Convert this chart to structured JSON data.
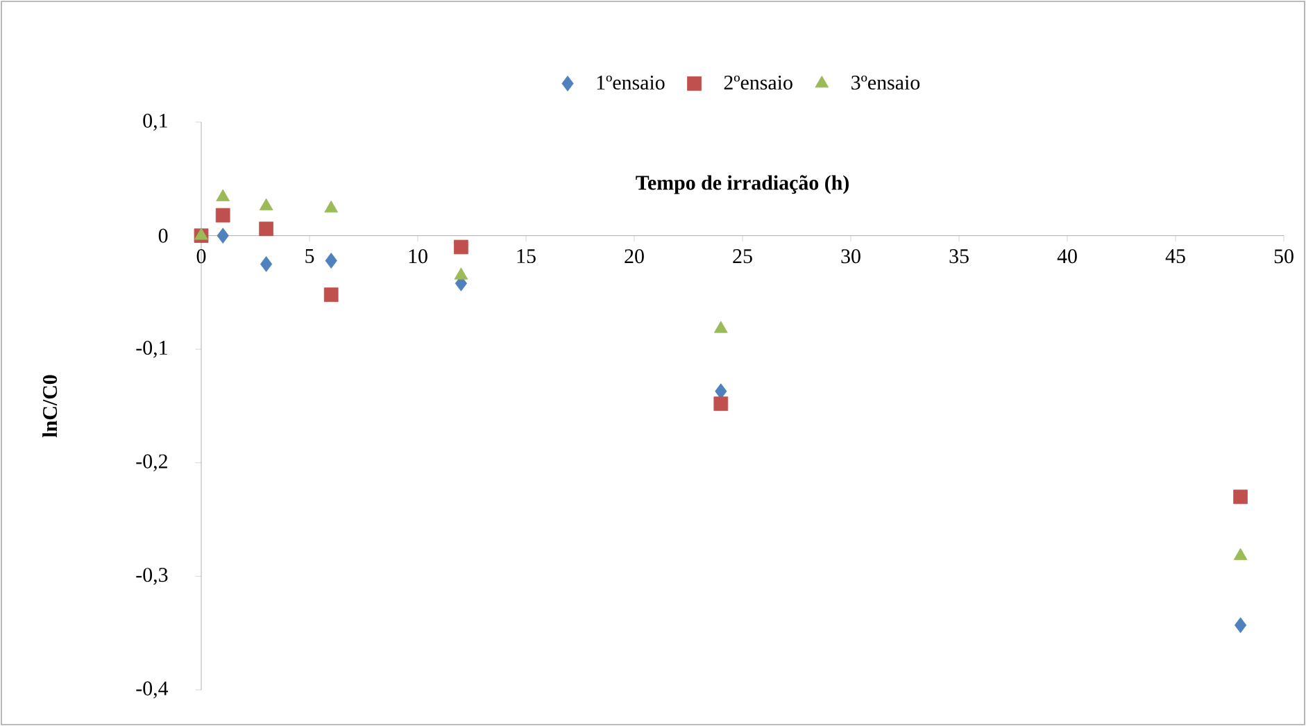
{
  "chart_data": {
    "type": "scatter",
    "xlabel": "Tempo de irradiação (h)",
    "ylabel": "lnC/C0",
    "x": [
      0,
      1,
      3,
      6,
      12,
      24,
      48
    ],
    "series": [
      {
        "name": "1ºensaio",
        "color": "#4f81bd",
        "marker": "diamond",
        "values": [
          null,
          0,
          -0.025,
          -0.022,
          -0.042,
          -0.137,
          -0.343
        ]
      },
      {
        "name": "2ºensaio",
        "color": "#c0504d",
        "marker": "square",
        "values": [
          0,
          0.018,
          0.006,
          -0.052,
          -0.01,
          -0.148,
          -0.23
        ]
      },
      {
        "name": "3ºensaio",
        "color": "#9bbb59",
        "marker": "triangle",
        "values": [
          0,
          0.034,
          0.026,
          0.024,
          -0.035,
          -0.082,
          -0.282
        ]
      }
    ],
    "xlim": [
      0,
      50
    ],
    "xticks": [
      0,
      5,
      10,
      15,
      20,
      25,
      30,
      35,
      40,
      45,
      50
    ],
    "ylim": [
      -0.4,
      0.1
    ],
    "yticks": [
      {
        "value": -0.4,
        "label": "-0,4"
      },
      {
        "value": -0.3,
        "label": "-0,3"
      },
      {
        "value": -0.2,
        "label": "-0,2"
      },
      {
        "value": -0.1,
        "label": "-0,1"
      },
      {
        "value": 0,
        "label": "0"
      },
      {
        "value": 0.1,
        "label": "0,1"
      }
    ],
    "legend": "top",
    "grid": false
  }
}
